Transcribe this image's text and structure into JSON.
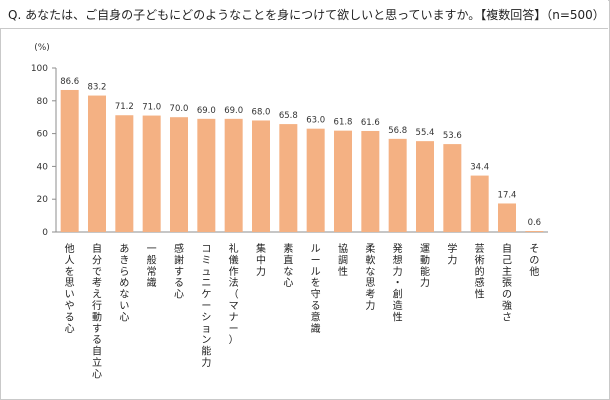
{
  "question": "Q. あなたは、ご自身の子どもにどのようなことを身につけて欲しいと思っていますか。【複数回答】（n=500）",
  "chart_data": {
    "type": "bar",
    "ylabel": "(%)",
    "ylim": [
      0,
      100
    ],
    "yticks": [
      "0",
      "20",
      "40",
      "60",
      "80",
      "100"
    ],
    "grid": false,
    "bar_color": "#f4b183",
    "categories": [
      "他人を思いやる心",
      "自分で考え行動する自立心",
      "あきらめない心",
      "一般常識",
      "感謝する心",
      "コミュニケーション能力",
      "礼儀作法（マナー）",
      "集中力",
      "素直な心",
      "ルールを守る意識",
      "協調性",
      "柔軟な思考力",
      "発想力・創造性",
      "運動能力",
      "学力",
      "芸術的感性",
      "自己主張の強さ",
      "その他"
    ],
    "values": [
      86.6,
      83.2,
      71.2,
      71.0,
      70.0,
      69.0,
      69.0,
      68.0,
      65.8,
      63.0,
      61.8,
      61.6,
      56.8,
      55.4,
      53.6,
      34.4,
      17.4,
      0.6
    ],
    "value_labels": [
      "86.6",
      "83.2",
      "71.2",
      "71.0",
      "70.0",
      "69.0",
      "69.0",
      "68.0",
      "65.8",
      "63.0",
      "61.8",
      "61.6",
      "56.8",
      "55.4",
      "53.6",
      "34.4",
      "17.4",
      "0.6"
    ]
  }
}
